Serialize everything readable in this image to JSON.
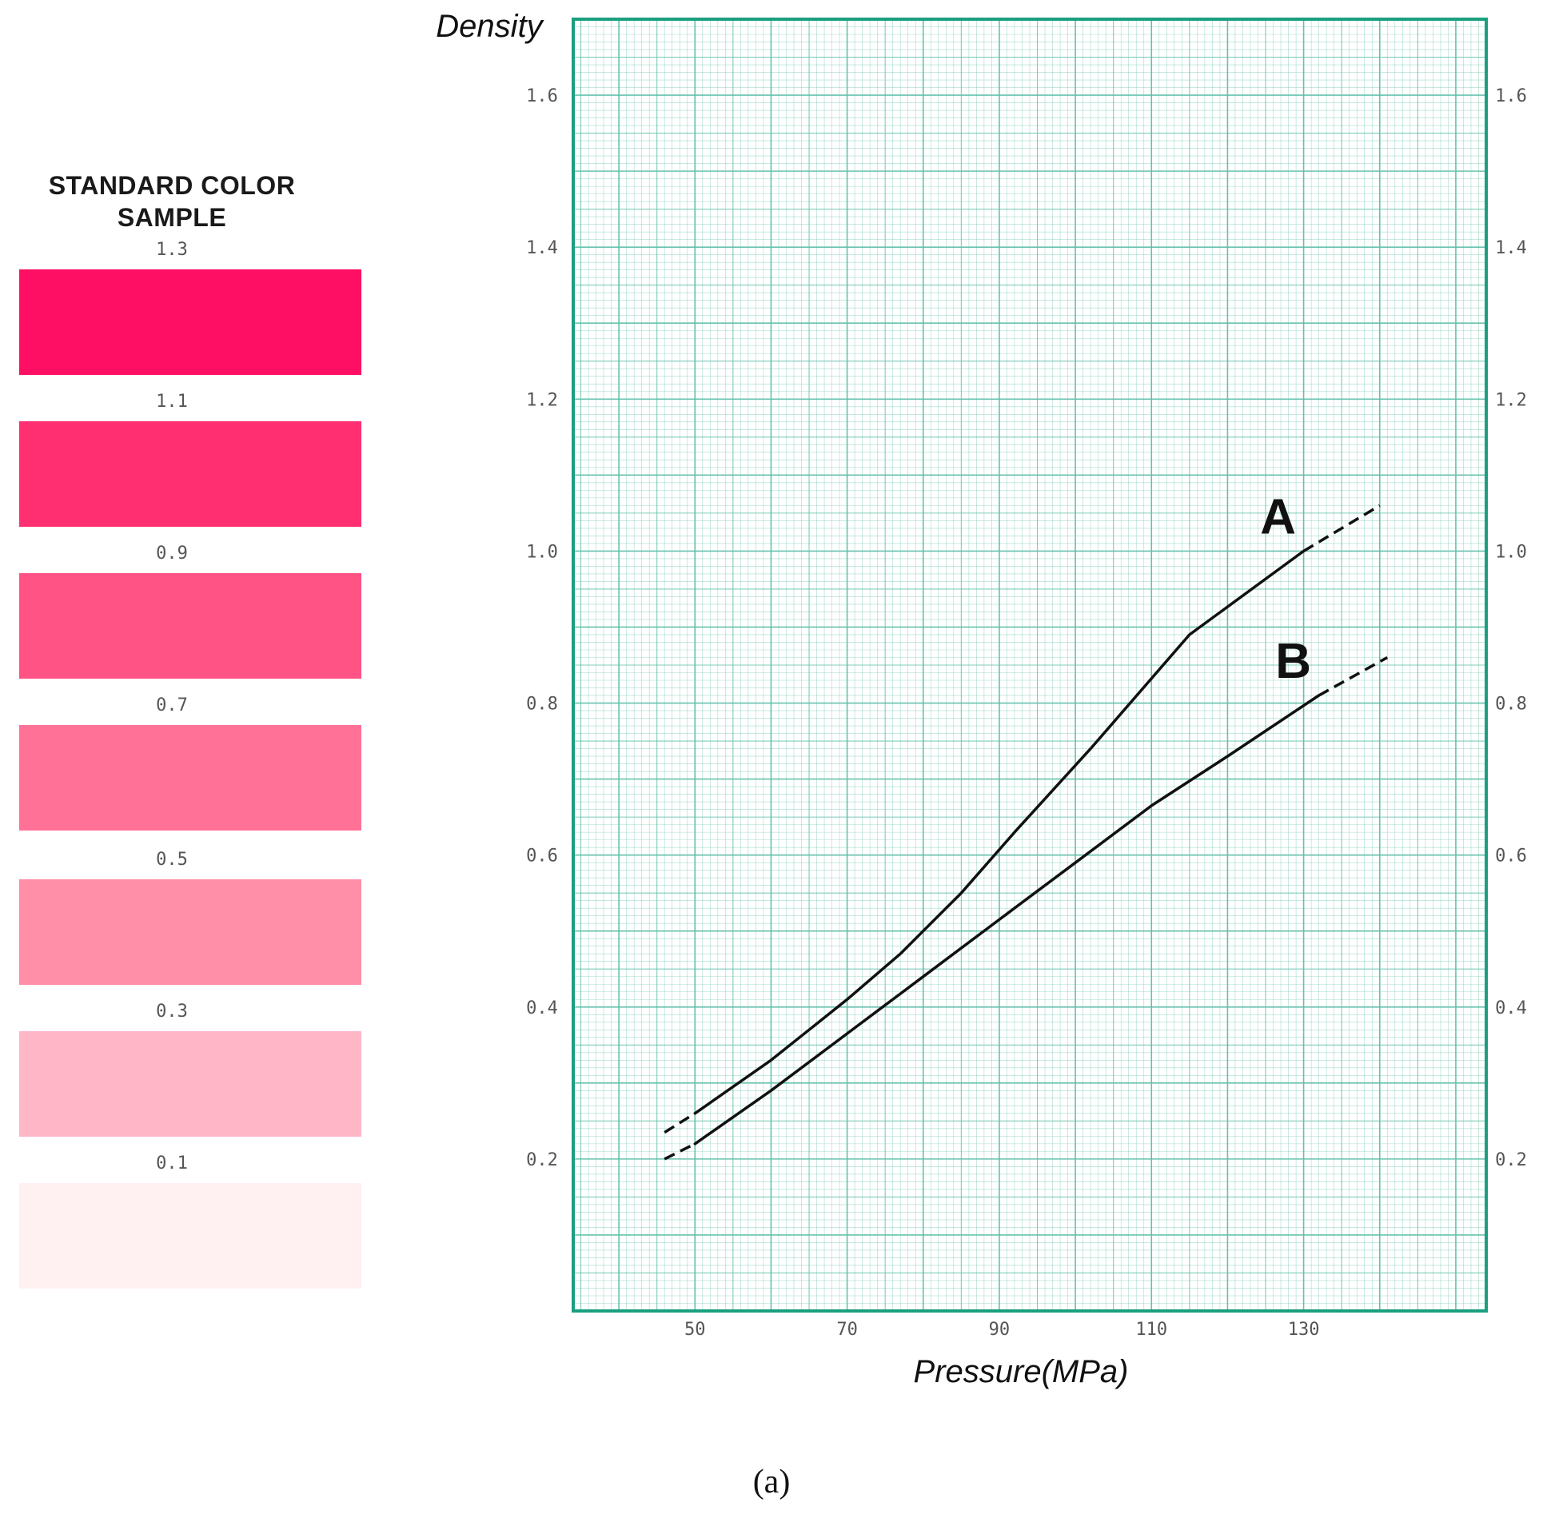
{
  "color_sample": {
    "title_line1": "STANDARD COLOR",
    "title_line2": "SAMPLE",
    "swatches": [
      {
        "label": "1.3",
        "color": "#ff0f63"
      },
      {
        "label": "1.1",
        "color": "#ff2f72"
      },
      {
        "label": "0.9",
        "color": "#ff5285"
      },
      {
        "label": "0.7",
        "color": "#ff7197"
      },
      {
        "label": "0.5",
        "color": "#ff8ea8"
      },
      {
        "label": "0.3",
        "color": "#ffb7c8"
      },
      {
        "label": "0.1",
        "color": "#fff0f1"
      }
    ]
  },
  "caption": "(a)",
  "chart_data": {
    "type": "line",
    "title": "",
    "xlabel": "Pressure(MPa)",
    "ylabel": "Density",
    "xlim": [
      34,
      154
    ],
    "ylim": [
      0,
      1.7
    ],
    "x_ticks": [
      50,
      70,
      90,
      110,
      130
    ],
    "y_ticks": [
      0.2,
      0.4,
      0.6,
      0.8,
      1.0,
      1.2,
      1.4,
      1.6
    ],
    "y_tick_labels": [
      "0.2",
      "0.4",
      "0.6",
      "0.8",
      "1.0",
      "1.2",
      "1.4",
      "1.6"
    ],
    "grid": true,
    "grid_color": "#5fbfa9",
    "frame_color": "#1a9f7f",
    "line_color": "#111111",
    "series": [
      {
        "name": "A",
        "solid": [
          [
            50,
            0.26
          ],
          [
            60,
            0.33
          ],
          [
            70,
            0.41
          ],
          [
            77,
            0.47
          ],
          [
            85,
            0.55
          ],
          [
            92,
            0.63
          ],
          [
            102,
            0.74
          ],
          [
            115,
            0.89
          ],
          [
            130,
            1.0
          ]
        ],
        "dashed_start": [
          [
            46,
            0.235
          ],
          [
            50,
            0.26
          ]
        ],
        "dashed_end": [
          [
            130,
            1.0
          ],
          [
            140,
            1.06
          ]
        ]
      },
      {
        "name": "B",
        "solid": [
          [
            50,
            0.22
          ],
          [
            60,
            0.29
          ],
          [
            70,
            0.365
          ],
          [
            80,
            0.44
          ],
          [
            90,
            0.515
          ],
          [
            100,
            0.59
          ],
          [
            110,
            0.665
          ],
          [
            120,
            0.73
          ],
          [
            132,
            0.81
          ]
        ],
        "dashed_start": [
          [
            46,
            0.2
          ],
          [
            50,
            0.22
          ]
        ],
        "dashed_end": [
          [
            132,
            0.81
          ],
          [
            141,
            0.86
          ]
        ]
      }
    ]
  }
}
